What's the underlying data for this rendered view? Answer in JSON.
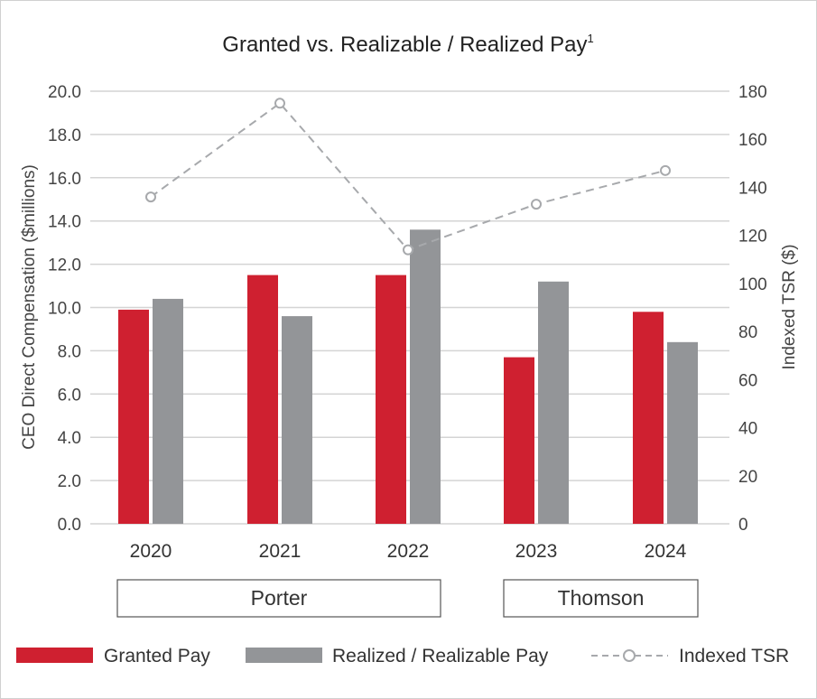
{
  "chart_data": {
    "type": "bar",
    "title": "Granted vs. Realizable / Realized Pay",
    "title_superscript": "1",
    "categories": [
      "2020",
      "2021",
      "2022",
      "2023",
      "2024"
    ],
    "ylabel": "CEO Direct Compensation ($millions)",
    "y2label": "Indexed TSR ($)",
    "ylim": [
      0,
      20
    ],
    "y2lim": [
      0,
      180
    ],
    "yticks": [
      "0.0",
      "2.0",
      "4.0",
      "6.0",
      "8.0",
      "10.0",
      "12.0",
      "14.0",
      "16.0",
      "18.0",
      "20.0"
    ],
    "y2ticks": [
      "0",
      "20",
      "40",
      "60",
      "80",
      "100",
      "120",
      "140",
      "160",
      "180"
    ],
    "grid": true,
    "series": [
      {
        "name": "Granted Pay",
        "type": "bar",
        "axis": "left",
        "color": "#cf2030",
        "values": [
          9.9,
          11.5,
          11.5,
          7.7,
          9.8
        ]
      },
      {
        "name": "Realized / Realizable Pay",
        "type": "bar",
        "axis": "left",
        "color": "#939598",
        "values": [
          10.4,
          9.6,
          13.6,
          11.2,
          8.4
        ]
      },
      {
        "name": "Indexed TSR",
        "type": "line",
        "axis": "right",
        "style": "dashed",
        "marker": "open-circle",
        "color": "#a7a9ac",
        "values": [
          136,
          175,
          114,
          133,
          147
        ]
      }
    ],
    "groups": [
      {
        "label": "Porter",
        "categories": [
          "2020",
          "2021",
          "2022"
        ]
      },
      {
        "label": "Thomson",
        "categories": [
          "2023",
          "2024"
        ]
      }
    ],
    "legend_position": "bottom"
  }
}
